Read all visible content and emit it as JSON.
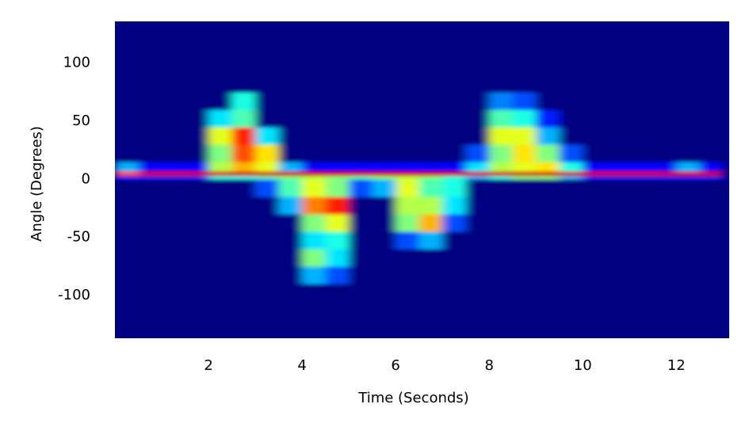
{
  "chart_data": {
    "type": "heatmap",
    "x_label": "Time (Seconds)",
    "y_label": "Angle (Degrees)",
    "colormap": "jet",
    "xlim": [
      0,
      13.13
    ],
    "ylim": [
      -137,
      136
    ],
    "xticks": [
      2,
      4,
      6,
      8,
      10,
      12
    ],
    "yticks": [
      -100,
      -50,
      0,
      50,
      100
    ],
    "x_bins": [
      0,
      0.5,
      1,
      1.5,
      2,
      2.5,
      3,
      3.5,
      4,
      4.5,
      5,
      5.5,
      6,
      6.5,
      7,
      7.5,
      8,
      8.5,
      9,
      9.5,
      10,
      10.5,
      11,
      11.5,
      12,
      12.5,
      13
    ],
    "y_bins": [
      -136,
      -90,
      -75,
      -60,
      -45,
      -30,
      -15,
      0,
      3,
      7,
      15,
      30,
      45,
      60,
      75,
      90,
      136
    ],
    "z": [
      [
        0,
        0,
        0,
        0,
        0,
        0,
        0,
        0,
        0,
        0,
        0,
        0,
        0,
        0,
        0,
        0,
        0,
        0,
        0,
        0,
        0,
        0,
        0,
        0,
        0,
        0
      ],
      [
        0,
        0,
        0,
        0,
        0,
        0,
        0,
        0,
        0.3,
        0.2,
        0,
        0,
        0,
        0,
        0,
        0,
        0,
        0,
        0,
        0,
        0,
        0,
        0,
        0,
        0,
        0
      ],
      [
        0,
        0,
        0,
        0,
        0,
        0,
        0,
        0,
        0.5,
        0.35,
        0,
        0,
        0,
        0,
        0,
        0,
        0,
        0,
        0,
        0,
        0,
        0,
        0,
        0,
        0,
        0
      ],
      [
        0,
        0,
        0,
        0,
        0,
        0,
        0,
        0,
        0.35,
        0.4,
        0,
        0,
        0.2,
        0.3,
        0,
        0,
        0,
        0,
        0,
        0,
        0,
        0,
        0,
        0,
        0,
        0
      ],
      [
        0,
        0,
        0,
        0,
        0,
        0,
        0,
        0,
        0.5,
        0.6,
        0,
        0,
        0.5,
        0.7,
        0.2,
        0,
        0,
        0,
        0,
        0,
        0,
        0,
        0,
        0,
        0,
        0
      ],
      [
        0,
        0,
        0,
        0,
        0,
        0,
        0,
        0.3,
        0.75,
        0.85,
        0,
        0,
        0.55,
        0.55,
        0.35,
        0,
        0,
        0,
        0,
        0,
        0,
        0,
        0,
        0,
        0,
        0
      ],
      [
        0,
        0,
        0,
        0,
        0,
        0,
        0.2,
        0.45,
        0.6,
        0.5,
        0.2,
        0.3,
        0.6,
        0.45,
        0.4,
        0,
        0,
        0,
        0,
        0,
        0,
        0,
        0,
        0,
        0,
        0
      ],
      [
        0.15,
        0.15,
        0.15,
        0.15,
        0.4,
        0.4,
        0.45,
        0.5,
        0.55,
        0.5,
        0.45,
        0.5,
        0.55,
        0.5,
        0.4,
        0.3,
        0.4,
        0.5,
        0.5,
        0.3,
        0.15,
        0.15,
        0.15,
        0.15,
        0.15,
        0.15
      ],
      [
        0.8,
        0.92,
        0.92,
        0.92,
        0.92,
        0.92,
        0.92,
        0.92,
        0.92,
        0.92,
        0.92,
        0.92,
        0.92,
        0.92,
        0.92,
        0.92,
        0.92,
        0.92,
        0.92,
        0.92,
        0.92,
        0.92,
        0.92,
        0.92,
        0.92,
        0.92
      ],
      [
        0.3,
        0.12,
        0.12,
        0.12,
        0.55,
        0.7,
        0.6,
        0.3,
        0.12,
        0.12,
        0.12,
        0.12,
        0.12,
        0.12,
        0.12,
        0.35,
        0.55,
        0.6,
        0.65,
        0.4,
        0.12,
        0.12,
        0.12,
        0.12,
        0.3,
        0.12
      ],
      [
        0,
        0,
        0,
        0,
        0.5,
        0.8,
        0.65,
        0,
        0,
        0,
        0,
        0,
        0,
        0,
        0,
        0.2,
        0.5,
        0.65,
        0.5,
        0.2,
        0,
        0,
        0,
        0,
        0,
        0
      ],
      [
        0,
        0,
        0,
        0,
        0.6,
        0.85,
        0.35,
        0,
        0,
        0,
        0,
        0,
        0,
        0,
        0,
        0,
        0.6,
        0.6,
        0.3,
        0,
        0,
        0,
        0,
        0,
        0,
        0
      ],
      [
        0,
        0,
        0,
        0,
        0.35,
        0.45,
        0,
        0,
        0,
        0,
        0,
        0,
        0,
        0,
        0,
        0,
        0.45,
        0.4,
        0.15,
        0,
        0,
        0,
        0,
        0,
        0,
        0
      ],
      [
        0,
        0,
        0,
        0,
        0,
        0.4,
        0,
        0,
        0,
        0,
        0,
        0,
        0,
        0,
        0,
        0,
        0.25,
        0.2,
        0,
        0,
        0,
        0,
        0,
        0,
        0,
        0
      ],
      [
        0,
        0,
        0,
        0,
        0,
        0,
        0,
        0,
        0,
        0,
        0,
        0,
        0,
        0,
        0,
        0,
        0,
        0,
        0,
        0,
        0,
        0,
        0,
        0,
        0,
        0
      ],
      [
        0,
        0,
        0,
        0,
        0,
        0,
        0,
        0,
        0,
        0,
        0,
        0,
        0,
        0,
        0,
        0,
        0,
        0,
        0,
        0,
        0,
        0,
        0,
        0,
        0,
        0
      ]
    ]
  }
}
